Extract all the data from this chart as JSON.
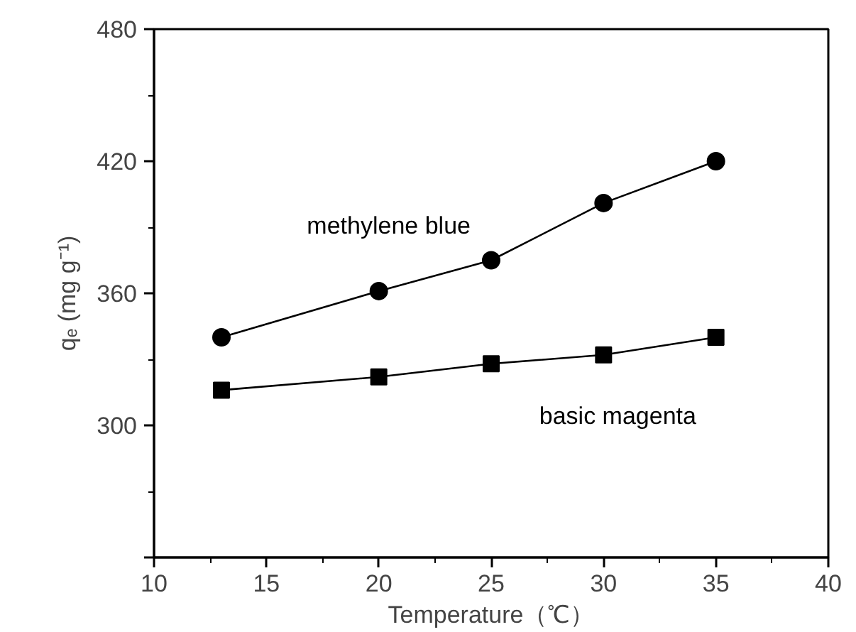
{
  "chart_data": {
    "type": "line",
    "xlabel": "Temperature（℃）",
    "ylabel": "qₑ (mg g⁻¹)",
    "x": [
      13,
      20,
      25,
      30,
      35
    ],
    "series": [
      {
        "name": "methylene blue",
        "color": "#000000",
        "marker": "circle",
        "values": [
          340,
          361,
          375,
          401,
          420
        ]
      },
      {
        "name": "basic magenta",
        "color": "#000000",
        "marker": "square",
        "values": [
          316,
          322,
          328,
          332,
          340
        ]
      }
    ],
    "xlim": [
      10,
      40
    ],
    "xticks": [
      10,
      15,
      20,
      25,
      30,
      35,
      40
    ],
    "ylim": [
      240,
      480
    ],
    "yticks": [
      {
        "value": 240,
        "label": null
      },
      300,
      360,
      420,
      480
    ],
    "grid": false,
    "legend": false,
    "line_style": "solid"
  }
}
